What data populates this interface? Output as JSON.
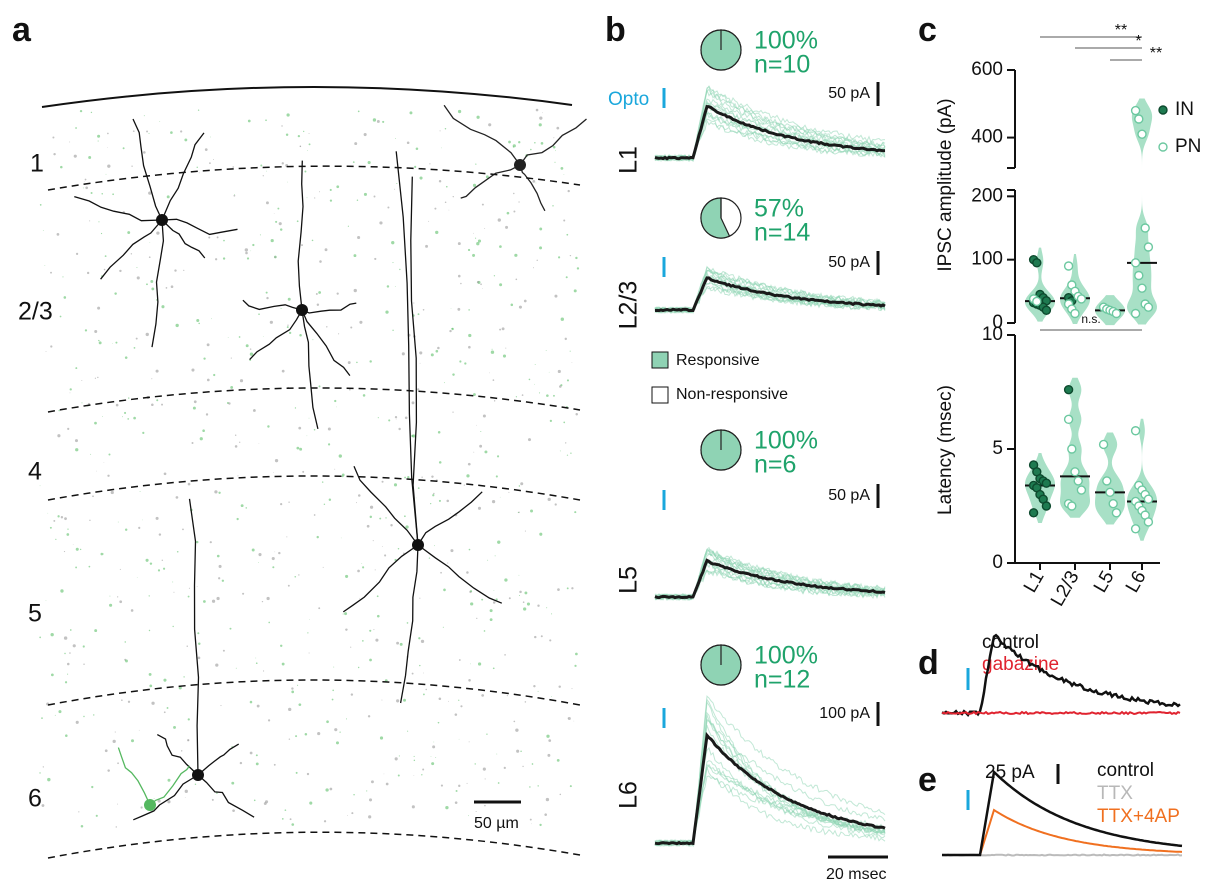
{
  "figure": {
    "panel_labels": [
      "a",
      "b",
      "c",
      "d",
      "e"
    ],
    "a": {
      "layers": [
        "1",
        "2/3",
        "4",
        "5",
        "6"
      ],
      "scale_bar": "50 µm"
    },
    "b": {
      "stim_label": "Opto",
      "time_scale": "20 msec",
      "legend": [
        "Responsive",
        "Non-responsive"
      ],
      "pie_color": "#8fd3b4",
      "rows": [
        {
          "layer": "L1",
          "percent": 100,
          "percent_label": "100%",
          "n": "n=10",
          "scale": "50 pA"
        },
        {
          "layer": "L2/3",
          "percent": 57,
          "percent_label": "57%",
          "n": "n=14",
          "scale": "50 pA"
        },
        {
          "layer": "L5",
          "percent": 100,
          "percent_label": "100%",
          "n": "n=6",
          "scale": "50 pA"
        },
        {
          "layer": "L6",
          "percent": 100,
          "percent_label": "100%",
          "n": "n=12",
          "scale": "100 pA"
        }
      ]
    },
    "d": {
      "labels": [
        "control",
        "gabazine"
      ]
    },
    "e": {
      "scale": "25 pA",
      "labels": [
        "control",
        "TTX",
        "TTX+4AP"
      ]
    }
  },
  "chart_data": [
    {
      "type": "violin",
      "ylabel": "IPSC amplitude (pA)",
      "ylim": [
        0,
        600
      ],
      "axis_break": [
        210,
        310
      ],
      "yticks": [
        0,
        100,
        200,
        400,
        600
      ],
      "significance": [
        "**",
        "*",
        "**"
      ],
      "violin_color": "#a8e0c6",
      "series": [
        {
          "name": "IN",
          "color": "#1e7a50",
          "values": [
            [
              100,
              95,
              45,
              40,
              35,
              32,
              30,
              28,
              25,
              20
            ],
            [
              40,
              35
            ],
            [],
            []
          ]
        },
        {
          "name": "PN",
          "color": "#6cc8a0",
          "values": [
            [
              38,
              34
            ],
            [
              90,
              60,
              50,
              42,
              38,
              30,
              22,
              15
            ],
            [
              25,
              22,
              20,
              18,
              15
            ],
            [
              480,
              455,
              410,
              150,
              120,
              95,
              75,
              55,
              30,
              25,
              15
            ]
          ]
        }
      ]
    },
    {
      "type": "violin",
      "ylabel": "Latency (msec)",
      "ylim": [
        0,
        10
      ],
      "yticks": [
        0,
        5,
        10
      ],
      "categories": [
        "L1",
        "L2/3",
        "L5",
        "L6"
      ],
      "significance": [
        "n.s."
      ],
      "violin_color": "#a8e0c6",
      "series": [
        {
          "color": "#1e7a50",
          "values": [
            [
              4.3,
              4.0,
              3.7,
              3.6,
              3.5,
              3.4,
              3.3,
              3.0,
              2.8,
              2.5,
              2.2
            ],
            [
              7.6
            ],
            [],
            []
          ]
        },
        {
          "color": "#6cc8a0",
          "values": [
            [],
            [
              6.3,
              5.0,
              4.0,
              3.6,
              3.2,
              2.6,
              2.5
            ],
            [
              5.2,
              3.6,
              3.1,
              2.6,
              2.2
            ],
            [
              5.8,
              3.4,
              3.2,
              3.0,
              2.8,
              2.7,
              2.5,
              2.3,
              2.1,
              1.8,
              1.5
            ]
          ]
        }
      ]
    }
  ]
}
